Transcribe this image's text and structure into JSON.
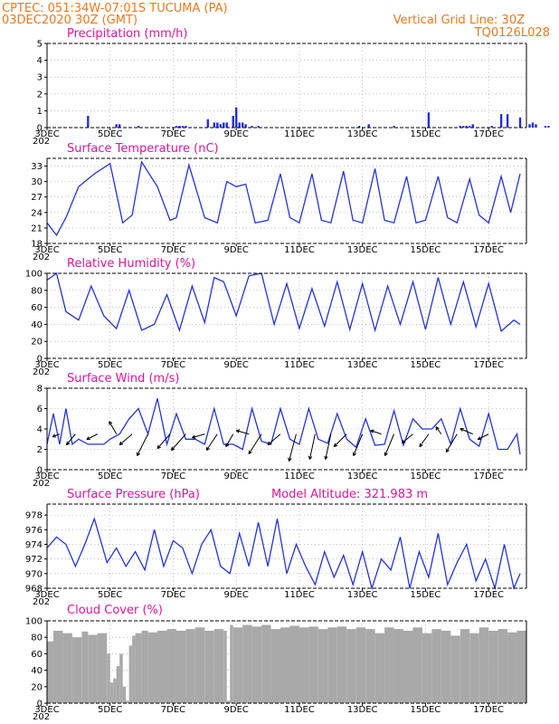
{
  "header": {
    "line1_left": "CPTEC:   051:34W-07:01S   TUCUMA (PA)",
    "line2_left": "03DEC2020 30Z (GMT)",
    "line1_right": "Vertical Grid Line: 30Z",
    "line2_right": "TQ0126L028"
  },
  "x_axis": {
    "tick_labels": [
      "3DEC",
      "5DEC",
      "7DEC",
      "9DEC",
      "11DEC",
      "13DEC",
      "15DEC",
      "17DEC"
    ],
    "year_fragment": "202"
  },
  "colors": {
    "header": "#f07818",
    "titles": "#e0159a",
    "series": "#2233dd",
    "bars": "#1f2ee6",
    "cloud": "#a9a9a9",
    "grid": "#999999",
    "arrows": "#000000"
  },
  "chart_data": [
    {
      "type": "bar",
      "title": "Precipitation (mm/h)",
      "ylim": [
        0,
        5
      ],
      "yticks": [
        0,
        1,
        2,
        3,
        4,
        5
      ],
      "grid": true,
      "series": [
        {
          "x": [
            4.3,
            5.2,
            5.3,
            5.9,
            7.1,
            7.2,
            7.3,
            7.4,
            8.1,
            8.3,
            8.4,
            8.5,
            8.6,
            8.7,
            8.9,
            9.0,
            9.1,
            9.2,
            9.3,
            9.5,
            9.7,
            12.9,
            13.2,
            14.0,
            15.1,
            16.1,
            16.2,
            16.3,
            16.4,
            16.5,
            17.1,
            17.4,
            17.6,
            18.0,
            18.3,
            18.4,
            18.5,
            18.8,
            18.9,
            19.4,
            19.6,
            19.7,
            19.8,
            19.9,
            20.1
          ],
          "values": [
            0.7,
            0.2,
            0.2,
            0.1,
            0.1,
            0.1,
            0.1,
            0.1,
            0.5,
            0.3,
            0.3,
            0.2,
            0.3,
            0.3,
            0.7,
            1.2,
            0.3,
            0.3,
            0.2,
            0.1,
            0.1,
            0.1,
            0.2,
            0.1,
            0.9,
            0.1,
            0.1,
            0.1,
            0.1,
            0.2,
            0.1,
            0.8,
            0.8,
            0.6,
            0.2,
            0.3,
            0.2,
            0.1,
            0.1,
            0.2,
            0.9,
            0.2,
            0.1,
            0.5,
            0.2
          ]
        }
      ]
    },
    {
      "type": "line",
      "title": "Surface Temperature (nC)",
      "ylim": [
        18,
        34.5
      ],
      "yticks": [
        18,
        21,
        24,
        27,
        30,
        33
      ],
      "grid": true,
      "series": [
        {
          "x": [
            3.0,
            3.3,
            3.6,
            4.0,
            4.5,
            5.0,
            5.4,
            5.7,
            6.0,
            6.5,
            6.9,
            7.1,
            7.5,
            8.0,
            8.4,
            8.7,
            9.0,
            9.3,
            9.6,
            10.0,
            10.4,
            10.7,
            11.0,
            11.4,
            11.7,
            12.0,
            12.4,
            12.7,
            13.0,
            13.4,
            13.7,
            14.0,
            14.4,
            14.7,
            15.0,
            15.4,
            15.7,
            16.0,
            16.4,
            16.7,
            17.0,
            17.4,
            17.7,
            18.0
          ],
          "values": [
            22,
            19.6,
            23,
            29,
            31.5,
            33.5,
            22,
            23.5,
            33.8,
            29,
            22.5,
            23,
            33.2,
            23,
            22,
            30,
            29,
            29.5,
            22,
            22.5,
            31.5,
            23,
            22,
            31.5,
            22.5,
            22,
            32,
            22.5,
            22,
            32.5,
            22.5,
            22,
            31,
            22,
            22.5,
            31,
            23,
            22,
            30.5,
            23.5,
            22,
            31,
            24,
            31.5
          ]
        }
      ]
    },
    {
      "type": "line",
      "title": "Relative Humidity (%)",
      "ylim": [
        0,
        100
      ],
      "yticks": [
        0,
        20,
        40,
        60,
        80,
        100
      ],
      "grid": true,
      "series": [
        {
          "x": [
            3.0,
            3.3,
            3.6,
            4.0,
            4.4,
            4.8,
            5.2,
            5.6,
            6.0,
            6.4,
            6.8,
            7.2,
            7.6,
            8.0,
            8.3,
            8.6,
            9.0,
            9.4,
            9.8,
            10.2,
            10.6,
            11.0,
            11.4,
            11.8,
            12.2,
            12.6,
            13.0,
            13.4,
            13.8,
            14.2,
            14.6,
            15.0,
            15.4,
            15.8,
            16.2,
            16.6,
            17.0,
            17.4,
            17.8,
            18.0
          ],
          "values": [
            92,
            100,
            55,
            45,
            85,
            50,
            35,
            80,
            33,
            40,
            75,
            33,
            85,
            42,
            95,
            90,
            50,
            97,
            100,
            40,
            88,
            35,
            82,
            38,
            90,
            34,
            88,
            33,
            85,
            40,
            90,
            34,
            95,
            40,
            90,
            37,
            88,
            32,
            45,
            40
          ]
        }
      ]
    },
    {
      "type": "line",
      "title": "Surface Wind (m/s)",
      "ylim": [
        0,
        8
      ],
      "yticks": [
        0,
        2,
        4,
        6,
        8
      ],
      "grid": true,
      "series": [
        {
          "x": [
            3.0,
            3.2,
            3.4,
            3.6,
            3.8,
            4.0,
            4.3,
            4.6,
            4.8,
            5.0,
            5.3,
            5.6,
            5.9,
            6.2,
            6.5,
            6.8,
            7.1,
            7.4,
            7.7,
            8.0,
            8.3,
            8.6,
            8.9,
            9.2,
            9.5,
            9.8,
            10.1,
            10.4,
            10.7,
            11.0,
            11.3,
            11.6,
            11.9,
            12.2,
            12.5,
            12.8,
            13.1,
            13.4,
            13.7,
            14.0,
            14.3,
            14.6,
            14.9,
            15.2,
            15.5,
            15.8,
            16.1,
            16.4,
            16.7,
            17.0,
            17.3,
            17.6,
            17.9,
            18.0
          ],
          "values": [
            2.5,
            5.5,
            2.5,
            6,
            2.5,
            3,
            2.5,
            2.5,
            2.5,
            3,
            3.5,
            5,
            6,
            3.5,
            7,
            2.5,
            5.5,
            3,
            3,
            2.5,
            6,
            2.5,
            2.5,
            2,
            6,
            2.8,
            2.5,
            6,
            3,
            2.5,
            6,
            3,
            2.6,
            5.5,
            3,
            2.2,
            5,
            2.4,
            2.5,
            5.8,
            2.4,
            5,
            4,
            4,
            5,
            2.5,
            6,
            3,
            2.3,
            5.5,
            2,
            2,
            3.5,
            1.5
          ]
        }
      ],
      "arrows": [
        {
          "x": 3.4,
          "dx": -8,
          "dy": 3
        },
        {
          "x": 3.9,
          "dx": -10,
          "dy": 12
        },
        {
          "x": 4.6,
          "dx": -12,
          "dy": 6
        },
        {
          "x": 5.2,
          "dx": -8,
          "dy": -14
        },
        {
          "x": 5.7,
          "dx": -14,
          "dy": 12
        },
        {
          "x": 6.2,
          "dx": -12,
          "dy": 24
        },
        {
          "x": 6.9,
          "dx": -14,
          "dy": 16
        },
        {
          "x": 7.4,
          "dx": -16,
          "dy": 18
        },
        {
          "x": 8.0,
          "dx": -14,
          "dy": 4
        },
        {
          "x": 8.4,
          "dx": -12,
          "dy": 18
        },
        {
          "x": 8.9,
          "dx": -8,
          "dy": 14
        },
        {
          "x": 9.4,
          "dx": -14,
          "dy": -4
        },
        {
          "x": 9.8,
          "dx": -14,
          "dy": 22
        },
        {
          "x": 10.4,
          "dx": -14,
          "dy": 12
        },
        {
          "x": 10.9,
          "dx": -8,
          "dy": 30
        },
        {
          "x": 11.5,
          "dx": -6,
          "dy": 28
        },
        {
          "x": 12.0,
          "dx": -6,
          "dy": 28
        },
        {
          "x": 12.5,
          "dx": -14,
          "dy": 14
        },
        {
          "x": 13.0,
          "dx": -10,
          "dy": 24
        },
        {
          "x": 13.6,
          "dx": -12,
          "dy": -4
        },
        {
          "x": 14.0,
          "dx": -10,
          "dy": 24
        },
        {
          "x": 14.6,
          "dx": -12,
          "dy": 10
        },
        {
          "x": 15.1,
          "dx": -10,
          "dy": 14
        },
        {
          "x": 15.5,
          "dx": -6,
          "dy": -8
        },
        {
          "x": 16.0,
          "dx": -12,
          "dy": 20
        },
        {
          "x": 16.5,
          "dx": -14,
          "dy": -6
        },
        {
          "x": 17.0,
          "dx": -12,
          "dy": 6
        }
      ]
    },
    {
      "type": "line",
      "title": "Surface Pressure (hPa)",
      "subtitle": "Model Altitude: 321.983 m",
      "ylim": [
        968,
        979.5
      ],
      "yticks": [
        968,
        970,
        972,
        974,
        976,
        978
      ],
      "grid": true,
      "series": [
        {
          "x": [
            3.0,
            3.3,
            3.6,
            3.9,
            4.2,
            4.5,
            4.9,
            5.2,
            5.5,
            5.8,
            6.1,
            6.4,
            6.7,
            7.0,
            7.3,
            7.6,
            7.9,
            8.2,
            8.5,
            8.8,
            9.1,
            9.4,
            9.7,
            10.0,
            10.3,
            10.6,
            10.9,
            11.2,
            11.5,
            11.8,
            12.1,
            12.4,
            12.7,
            13.0,
            13.3,
            13.6,
            13.9,
            14.2,
            14.5,
            14.8,
            15.1,
            15.4,
            15.7,
            16.0,
            16.3,
            16.6,
            16.9,
            17.2,
            17.5,
            17.8,
            18.0
          ],
          "values": [
            973.5,
            975,
            974,
            971,
            974,
            977.5,
            971.5,
            973.5,
            971,
            973,
            970.5,
            976,
            971,
            974.5,
            973.5,
            970,
            974,
            976,
            971,
            970,
            975.5,
            971,
            977,
            971,
            977.5,
            970,
            974,
            971,
            968.5,
            973,
            969.5,
            972.5,
            968.5,
            973,
            968,
            972,
            970.5,
            975,
            968,
            973,
            969.5,
            975.5,
            968.5,
            971.5,
            974,
            969,
            972,
            968,
            974,
            968,
            970
          ]
        }
      ]
    },
    {
      "type": "bar",
      "title": "Cloud Cover (%)",
      "ylim": [
        0,
        100
      ],
      "yticks": [
        0,
        20,
        40,
        60,
        80,
        100
      ],
      "grid": true,
      "series": [
        {
          "x": [
            3.0,
            3.2,
            3.5,
            3.8,
            4.1,
            4.3,
            4.6,
            4.9,
            5.0,
            5.1,
            5.2,
            5.3,
            5.4,
            5.5,
            5.6,
            5.7,
            5.8,
            6.0,
            6.2,
            6.5,
            6.8,
            7.1,
            7.4,
            7.7,
            8.0,
            8.3,
            8.6,
            8.7,
            8.8,
            8.9,
            9.2,
            9.5,
            9.8,
            10.1,
            10.4,
            10.7,
            11.0,
            11.3,
            11.6,
            11.9,
            12.2,
            12.5,
            12.8,
            13.1,
            13.4,
            13.7,
            14.0,
            14.3,
            14.6,
            14.9,
            15.2,
            15.5,
            15.8,
            16.1,
            16.4,
            16.7,
            17.0,
            17.3,
            17.6,
            17.9
          ],
          "values": [
            75,
            88,
            85,
            80,
            87,
            83,
            85,
            60,
            25,
            30,
            45,
            60,
            20,
            3,
            70,
            82,
            85,
            88,
            86,
            88,
            90,
            88,
            90,
            92,
            88,
            90,
            88,
            3,
            95,
            92,
            95,
            93,
            95,
            90,
            92,
            94,
            92,
            93,
            90,
            92,
            93,
            90,
            92,
            90,
            85,
            92,
            90,
            88,
            92,
            85,
            90,
            88,
            82,
            90,
            85,
            92,
            88,
            90,
            86,
            88
          ]
        }
      ]
    }
  ]
}
